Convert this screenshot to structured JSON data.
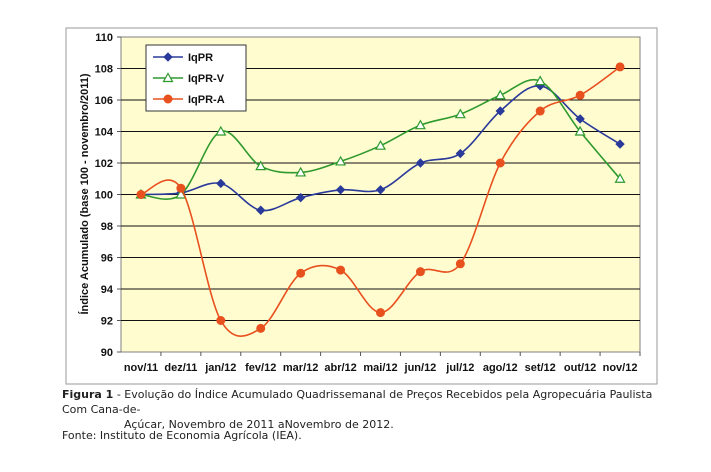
{
  "chart_data": {
    "type": "line",
    "ylabel": "Índice Acumulado (base 100 - novembro/2011)",
    "ylim": [
      90,
      110
    ],
    "yticks": [
      90,
      92,
      94,
      96,
      98,
      100,
      102,
      104,
      106,
      108,
      110
    ],
    "categories": [
      "nov/11",
      "dez/11",
      "jan/12",
      "fev/12",
      "mar/12",
      "abr/12",
      "mai/12",
      "jun/12",
      "jul/12",
      "ago/12",
      "set/12",
      "out/12",
      "nov/12"
    ],
    "grid": true,
    "legend_position": "top-left",
    "plot_background": "#fffcd0",
    "series": [
      {
        "name": "IqPR",
        "color": "#2a3a9a",
        "marker": "diamond",
        "values": [
          100.0,
          100.1,
          100.7,
          99.0,
          99.8,
          100.3,
          100.3,
          102.0,
          102.6,
          105.3,
          106.9,
          104.8,
          103.2
        ]
      },
      {
        "name": "IqPR-V",
        "color": "#2e9a2e",
        "marker": "triangle-open",
        "values": [
          100.0,
          100.0,
          104.0,
          101.8,
          101.4,
          102.1,
          103.1,
          104.4,
          105.1,
          106.3,
          107.2,
          104.0,
          101.0
        ]
      },
      {
        "name": "IqPR-A",
        "color": "#e8501e",
        "marker": "circle",
        "values": [
          100.0,
          100.4,
          92.0,
          91.5,
          95.0,
          95.2,
          92.5,
          95.1,
          95.6,
          102.0,
          105.3,
          106.3,
          108.1
        ]
      }
    ]
  },
  "caption": {
    "label": "Figura 1",
    "line1": " - Evolução do Índice Acumulado Quadrissemanal de Preços Recebidos pela Agropecuária Paulista Com Cana-de-",
    "line2": "Açúcar, Novembro de 2011 aNovembro de 2012."
  },
  "source": "Fonte: Instituto de Economia Agrícola (IEA)."
}
